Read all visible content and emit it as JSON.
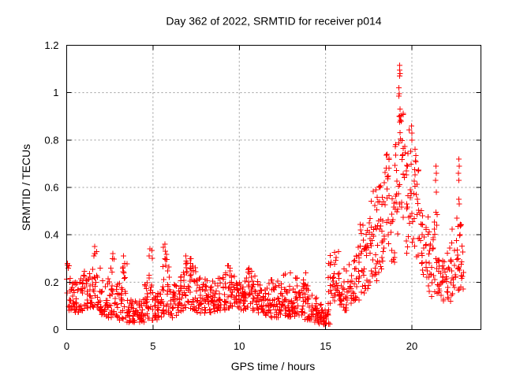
{
  "title": "Day 362 of 2022, SRMTID for receiver p014",
  "colors": {
    "background": "#ffffff",
    "border": "#000000",
    "grid": "#999999",
    "marker": "#ff0000",
    "text": "#000000"
  },
  "chart_data": {
    "type": "scatter",
    "title": "Day 362 of 2022, SRMTID for receiver p014",
    "xlabel": "GPS time / hours",
    "ylabel": "SRMTID / TECUs",
    "xlim": [
      0,
      24
    ],
    "ylim": [
      0,
      1.2
    ],
    "x_ticks": [
      0,
      5,
      10,
      15,
      20
    ],
    "x_tick_labels": [
      "0",
      "5",
      "10",
      "15",
      "20"
    ],
    "y_ticks": [
      0,
      0.2,
      0.4,
      0.6,
      0.8,
      1,
      1.2
    ],
    "y_tick_labels": [
      "0",
      "0.2",
      "0.4",
      "0.6",
      "0.8",
      "1",
      "1.2"
    ],
    "grid": true,
    "grid_style": "dotted",
    "legend_position": "none",
    "marker": "plus",
    "marker_size_px": 7,
    "marker_color": "#ff0000",
    "series_name": "SRMTID",
    "x_data_range": [
      0,
      23.0
    ],
    "peak": {
      "x": 19.3,
      "y": 1.11
    },
    "band_envelope": {
      "description": "Dense scatter band summarized per 0.25 h bin: [hour_start, y_min, y_max, n_points, bias(optional)]",
      "bin_hours": 0.25,
      "bins": [
        [
          0.0,
          0.08,
          0.28,
          16
        ],
        [
          0.25,
          0.08,
          0.22,
          16
        ],
        [
          0.5,
          0.07,
          0.2,
          16
        ],
        [
          0.75,
          0.08,
          0.24,
          16
        ],
        [
          1.0,
          0.09,
          0.29,
          16
        ],
        [
          1.25,
          0.08,
          0.24,
          16
        ],
        [
          1.5,
          0.09,
          0.35,
          16
        ],
        [
          1.75,
          0.08,
          0.26,
          16
        ],
        [
          2.0,
          0.06,
          0.24,
          16
        ],
        [
          2.25,
          0.05,
          0.22,
          16
        ],
        [
          2.5,
          0.05,
          0.32,
          16
        ],
        [
          2.75,
          0.05,
          0.24,
          16
        ],
        [
          3.0,
          0.04,
          0.2,
          16
        ],
        [
          3.25,
          0.04,
          0.31,
          16
        ],
        [
          3.5,
          0.03,
          0.13,
          16
        ],
        [
          3.75,
          0.03,
          0.12,
          16
        ],
        [
          4.0,
          0.03,
          0.12,
          16
        ],
        [
          4.25,
          0.03,
          0.13,
          16
        ],
        [
          4.5,
          0.04,
          0.2,
          16
        ],
        [
          4.75,
          0.04,
          0.34,
          16
        ],
        [
          5.0,
          0.04,
          0.15,
          16
        ],
        [
          5.25,
          0.05,
          0.16,
          16
        ],
        [
          5.5,
          0.06,
          0.36,
          16
        ],
        [
          5.75,
          0.06,
          0.32,
          16
        ],
        [
          6.0,
          0.05,
          0.18,
          16
        ],
        [
          6.25,
          0.06,
          0.2,
          16
        ],
        [
          6.5,
          0.07,
          0.24,
          16
        ],
        [
          6.75,
          0.08,
          0.3,
          16
        ],
        [
          7.0,
          0.09,
          0.32,
          16
        ],
        [
          7.25,
          0.08,
          0.28,
          16
        ],
        [
          7.5,
          0.07,
          0.22,
          16
        ],
        [
          7.75,
          0.07,
          0.2,
          16
        ],
        [
          8.0,
          0.08,
          0.22,
          16
        ],
        [
          8.25,
          0.07,
          0.21,
          16
        ],
        [
          8.5,
          0.07,
          0.2,
          16
        ],
        [
          8.75,
          0.08,
          0.22,
          16
        ],
        [
          9.0,
          0.08,
          0.24,
          16
        ],
        [
          9.25,
          0.09,
          0.27,
          16
        ],
        [
          9.5,
          0.08,
          0.24,
          16
        ],
        [
          9.75,
          0.07,
          0.22,
          16
        ],
        [
          10.0,
          0.07,
          0.21,
          16
        ],
        [
          10.25,
          0.08,
          0.23,
          16
        ],
        [
          10.5,
          0.08,
          0.26,
          16
        ],
        [
          10.75,
          0.08,
          0.23,
          16
        ],
        [
          11.0,
          0.07,
          0.22,
          16
        ],
        [
          11.25,
          0.07,
          0.2,
          16
        ],
        [
          11.5,
          0.06,
          0.2,
          16
        ],
        [
          11.75,
          0.05,
          0.21,
          16
        ],
        [
          12.0,
          0.05,
          0.24,
          16
        ],
        [
          12.25,
          0.06,
          0.2,
          16
        ],
        [
          12.5,
          0.06,
          0.24,
          16
        ],
        [
          12.75,
          0.05,
          0.2,
          16
        ],
        [
          13.0,
          0.05,
          0.18,
          16
        ],
        [
          13.25,
          0.06,
          0.22,
          16
        ],
        [
          13.5,
          0.05,
          0.22,
          16
        ],
        [
          13.75,
          0.04,
          0.2,
          16
        ],
        [
          14.0,
          0.04,
          0.16,
          16
        ],
        [
          14.25,
          0.03,
          0.15,
          16
        ],
        [
          14.5,
          0.02,
          0.12,
          16
        ],
        [
          14.75,
          0.02,
          0.09,
          16
        ],
        [
          15.0,
          0.02,
          0.1,
          12
        ],
        [
          15.25,
          0.1,
          0.32,
          16
        ],
        [
          15.5,
          0.12,
          0.33,
          16
        ],
        [
          15.75,
          0.1,
          0.28,
          16
        ],
        [
          16.0,
          0.08,
          0.26,
          14
        ],
        [
          16.25,
          0.1,
          0.3,
          14
        ],
        [
          16.5,
          0.12,
          0.32,
          14
        ],
        [
          16.75,
          0.12,
          0.38,
          14
        ],
        [
          17.0,
          0.15,
          0.45,
          16
        ],
        [
          17.25,
          0.17,
          0.5,
          16
        ],
        [
          17.5,
          0.2,
          0.55,
          16
        ],
        [
          17.75,
          0.2,
          0.6,
          16
        ],
        [
          18.0,
          0.15,
          0.62,
          16,
          0.85
        ],
        [
          18.25,
          0.25,
          0.68,
          16,
          0.85
        ],
        [
          18.5,
          0.3,
          0.75,
          16,
          0.85
        ],
        [
          18.75,
          0.28,
          0.6,
          14
        ],
        [
          19.0,
          0.4,
          0.8,
          16,
          0.85
        ],
        [
          19.25,
          0.5,
          0.95,
          18,
          0.85
        ],
        [
          19.5,
          0.3,
          0.8,
          14,
          0.85
        ],
        [
          19.75,
          0.35,
          0.87,
          14,
          0.85
        ],
        [
          20.0,
          0.35,
          0.78,
          14,
          0.85
        ],
        [
          20.25,
          0.3,
          0.68,
          14
        ],
        [
          20.5,
          0.22,
          0.6,
          14
        ],
        [
          20.75,
          0.15,
          0.48,
          14
        ],
        [
          21.0,
          0.14,
          0.4,
          14
        ],
        [
          21.25,
          0.15,
          0.52,
          14
        ],
        [
          21.5,
          0.13,
          0.35,
          14
        ],
        [
          21.75,
          0.12,
          0.3,
          14
        ],
        [
          22.0,
          0.12,
          0.35,
          14
        ],
        [
          22.25,
          0.14,
          0.45,
          14
        ],
        [
          22.5,
          0.15,
          0.47,
          14
        ],
        [
          22.75,
          0.15,
          0.45,
          16
        ]
      ]
    },
    "points_extra": [
      [
        0.05,
        0.28
      ],
      [
        0.09,
        0.26
      ],
      [
        1.62,
        0.35
      ],
      [
        1.64,
        0.32
      ],
      [
        1.58,
        0.31
      ],
      [
        2.68,
        0.32
      ],
      [
        2.66,
        0.3
      ],
      [
        3.28,
        0.31
      ],
      [
        4.82,
        0.34
      ],
      [
        4.78,
        0.31
      ],
      [
        5.7,
        0.36
      ],
      [
        5.72,
        0.33
      ],
      [
        5.68,
        0.3
      ],
      [
        6.9,
        0.31
      ],
      [
        6.92,
        0.29
      ],
      [
        7.15,
        0.3
      ],
      [
        7.18,
        0.28
      ],
      [
        9.32,
        0.27
      ],
      [
        10.55,
        0.26
      ],
      [
        12.95,
        0.24
      ],
      [
        13.85,
        0.24
      ],
      [
        15.18,
        0.28
      ],
      [
        15.16,
        0.22
      ],
      [
        15.17,
        0.16
      ],
      [
        15.15,
        0.11
      ],
      [
        19.28,
        1.115
      ],
      [
        19.3,
        1.095
      ],
      [
        19.31,
        1.08
      ],
      [
        19.29,
        1.07
      ],
      [
        19.25,
        1.02
      ],
      [
        19.26,
        0.995
      ],
      [
        19.24,
        0.985
      ],
      [
        19.32,
        0.93
      ],
      [
        19.3,
        0.9
      ],
      [
        19.34,
        0.885
      ],
      [
        19.97,
        0.86
      ],
      [
        20.0,
        0.83
      ],
      [
        19.99,
        0.8
      ],
      [
        21.4,
        0.69
      ],
      [
        21.42,
        0.66
      ],
      [
        21.38,
        0.63
      ],
      [
        21.41,
        0.58
      ],
      [
        22.72,
        0.72
      ],
      [
        22.74,
        0.69
      ],
      [
        22.7,
        0.66
      ],
      [
        22.73,
        0.63
      ],
      [
        22.71,
        0.55
      ],
      [
        22.75,
        0.53
      ],
      [
        22.6,
        0.47
      ],
      [
        22.78,
        0.44
      ]
    ]
  }
}
